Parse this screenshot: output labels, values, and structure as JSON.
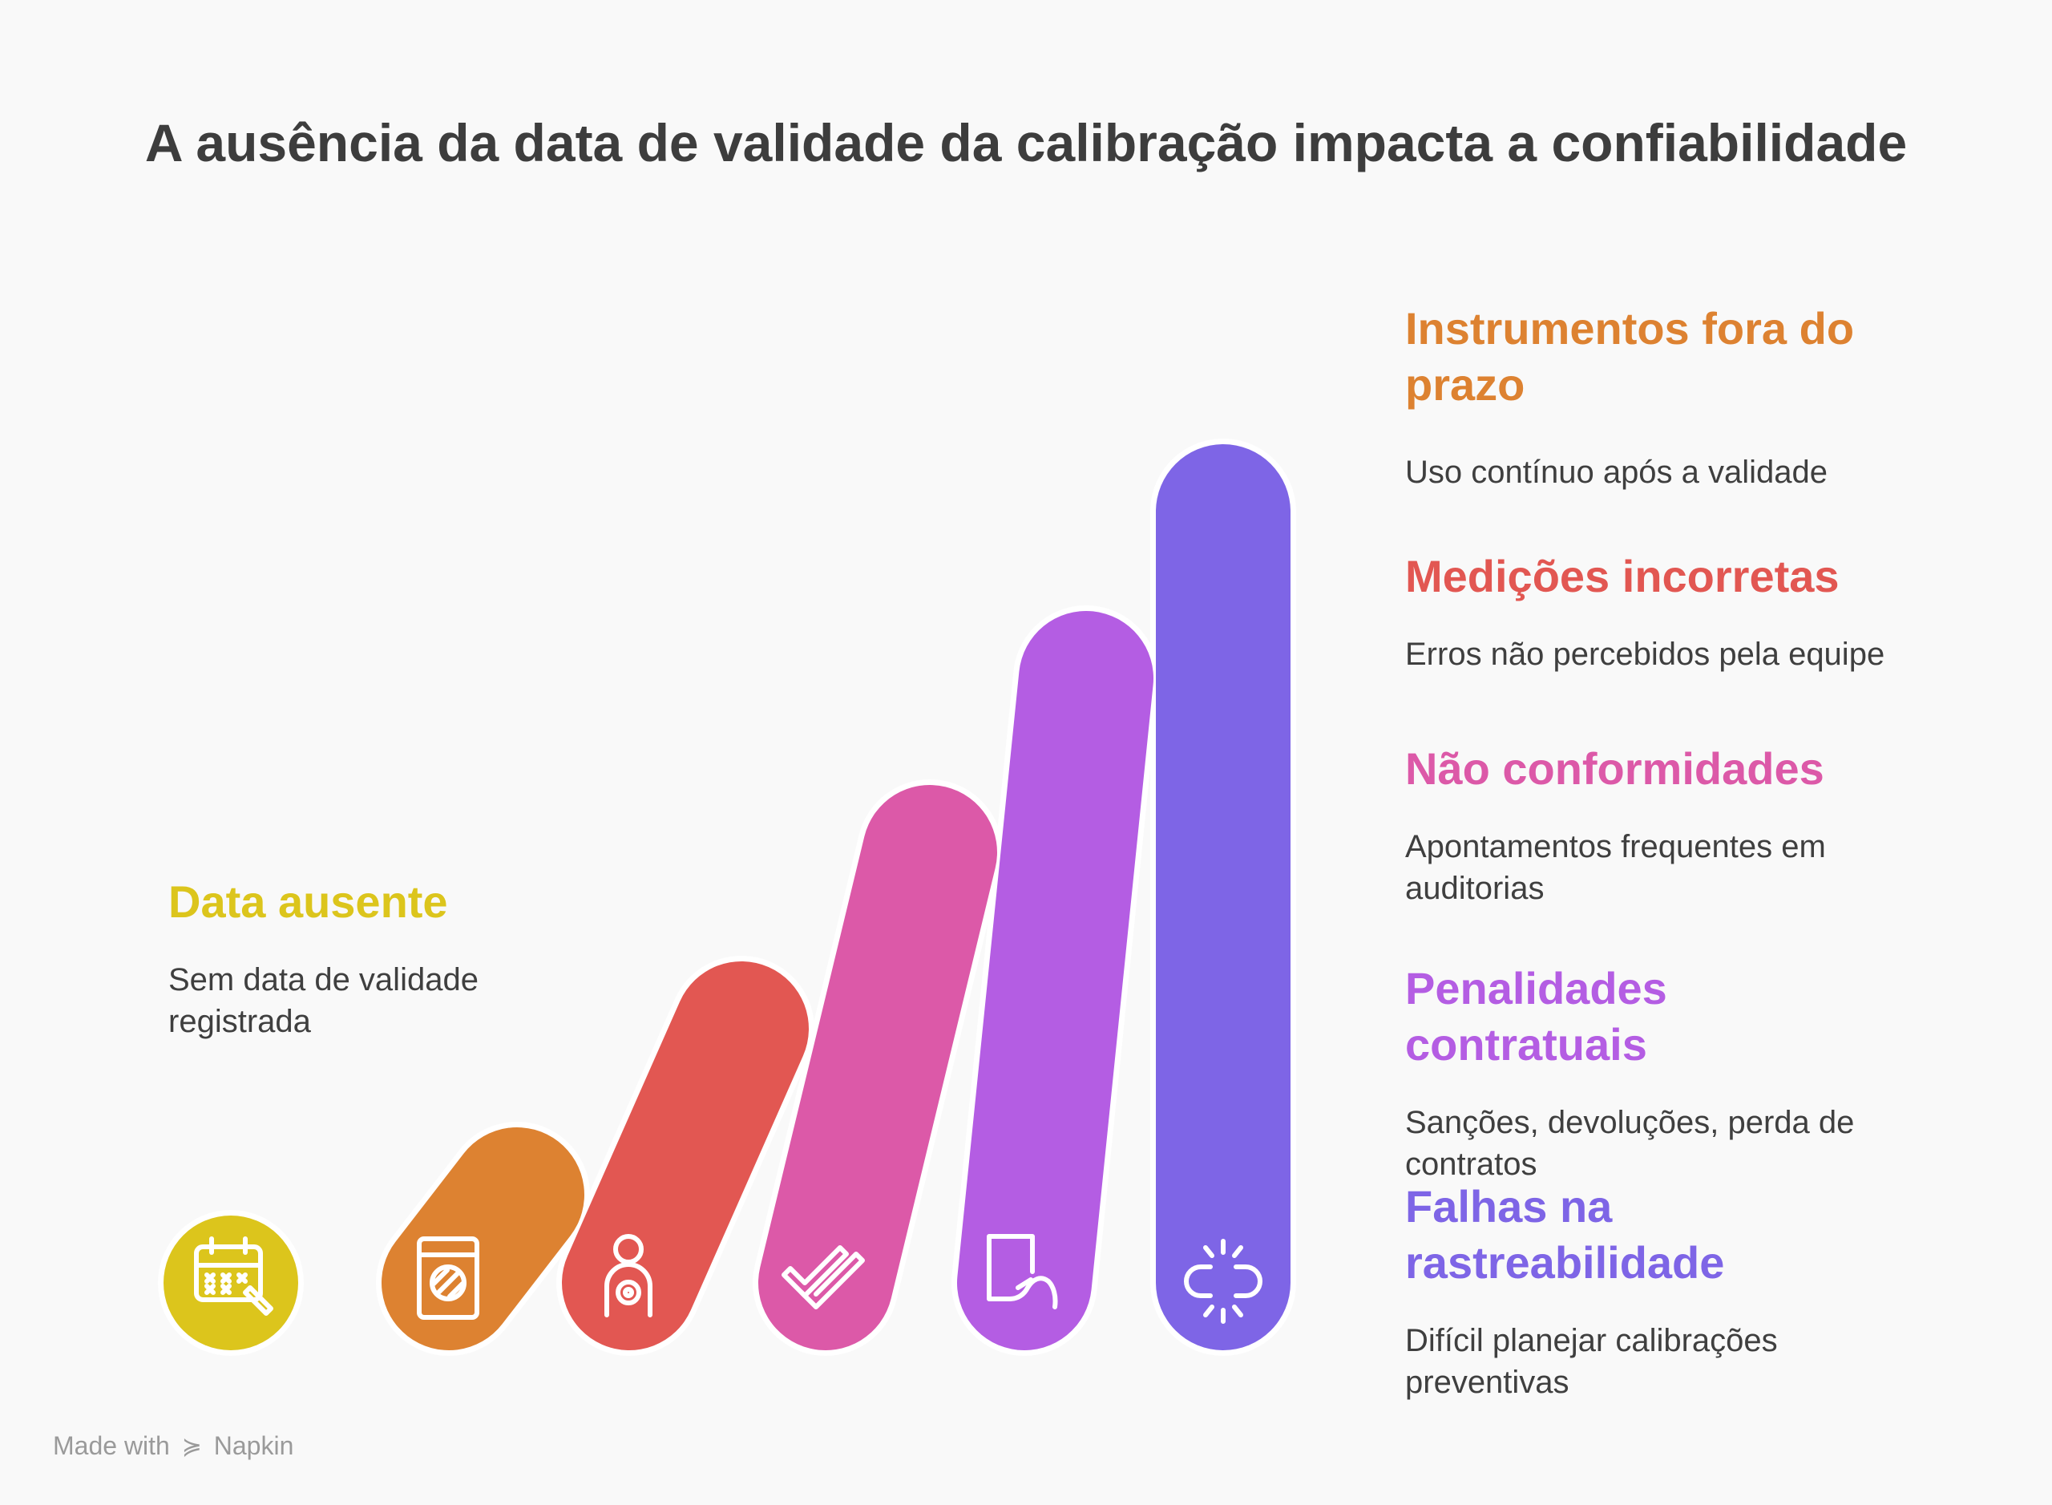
{
  "title": "A ausência da data de validade da calibração impacta a confiabilidade",
  "steps": [
    {
      "heading": "Data ausente",
      "description": "Sem data de validade registrada",
      "color": "#dcc51c",
      "icon": "calendar-edit-icon"
    },
    {
      "heading": "Instrumentos fora do prazo",
      "description": "Uso contínuo após a validade",
      "color": "#dd8231",
      "icon": "expired-document-icon"
    },
    {
      "heading": "Medições incorretas",
      "description": "Erros não percebidos pela equipe",
      "color": "#e25752",
      "icon": "person-target-icon"
    },
    {
      "heading": "Não conformidades",
      "description": "Apontamentos frequentes em auditorias",
      "color": "#dc59a8",
      "icon": "double-check-icon"
    },
    {
      "heading": "Penalidades contratuais",
      "description": "Sanções, devoluções, perda de contratos",
      "color": "#b45de3",
      "icon": "document-hand-icon"
    },
    {
      "heading": "Falhas na rastreabilidade",
      "description": "Difícil planejar calibrações preventivas",
      "color": "#7e65e6",
      "icon": "broken-link-icon"
    }
  ],
  "footer": {
    "made_with": "Made with",
    "brand": "Napkin"
  }
}
